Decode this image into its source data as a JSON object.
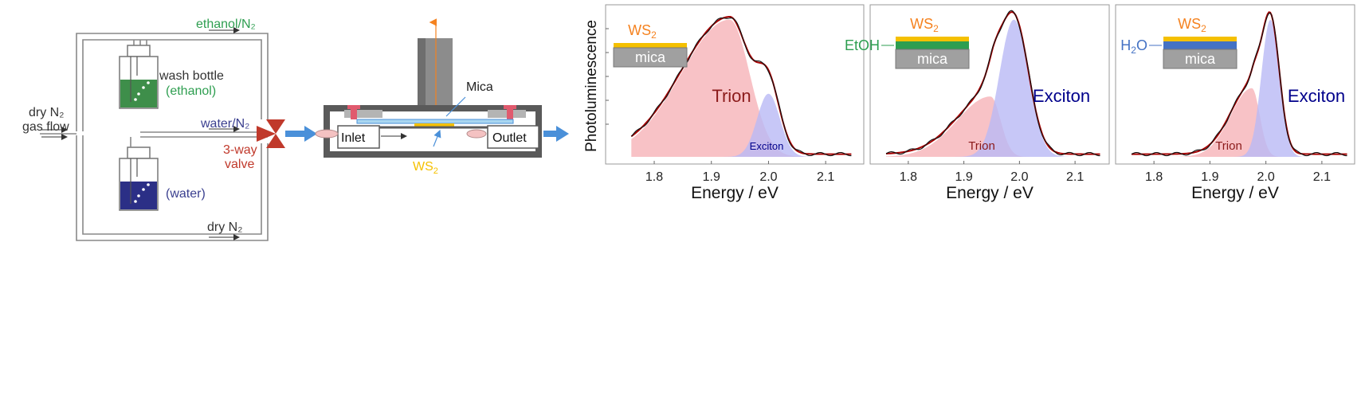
{
  "setup": {
    "ethanol_line": "ethanol/N₂",
    "dry_in_1": "dry N₂",
    "dry_in_2": "gas flow",
    "wash_1": "wash bottle",
    "wash_2": "(ethanol)",
    "water_line": "water/N₂",
    "valve_1": "3-way",
    "valve_2": "valve",
    "water_label": "(water)",
    "dry_out": "dry N₂"
  },
  "cell": {
    "mica": "Mica",
    "inlet": "Inlet",
    "outlet": "Outlet",
    "ws2_base": "WS",
    "ws2_sub": "2"
  },
  "colors": {
    "trion_fill": "#f6b3b8",
    "exciton_fill": "#b9b9f5",
    "fit_line": "#a40000",
    "data_line": "#111111",
    "ws2_color": "#f5821f",
    "ethanol_green": "#2e9e50",
    "water_blue": "#4472c4",
    "exciton_text": "#00008b",
    "trion_text": "#8b1a1a",
    "valve_red": "#c0392b"
  },
  "panels": [
    {
      "inset": {
        "top": "WS",
        "top_sub": "2",
        "bottom": "mica",
        "left_label": "",
        "left_sub": "",
        "left_after": ""
      },
      "big_label": "Trion",
      "small_label": "Exciton",
      "xlabel": "Energy / eV"
    },
    {
      "inset": {
        "top": "WS",
        "top_sub": "2",
        "bottom": "mica",
        "left_label": "EtOH",
        "left_sub": "",
        "left_after": ""
      },
      "big_label": "Exciton",
      "small_label": "Trion",
      "xlabel": "Energy / eV"
    },
    {
      "inset": {
        "top": "WS",
        "top_sub": "2",
        "bottom": "mica",
        "left_label": "H",
        "left_sub": "2",
        "left_after": "O"
      },
      "big_label": "Exciton",
      "small_label": "Trion",
      "xlabel": "Energy / eV"
    }
  ],
  "chart_data": [
    {
      "type": "area",
      "ylabel": "Photoluminescence",
      "xlabel": "Energy / eV",
      "xlim": [
        1.74,
        2.15
      ],
      "ylim": [
        0,
        1.05
      ],
      "xticks": [
        1.8,
        1.9,
        2.0,
        2.1
      ],
      "series": [
        {
          "name": "Trion",
          "center": 1.932,
          "width_left": 0.085,
          "width_right": 0.035,
          "amplitude": 1.0
        },
        {
          "name": "Exciton",
          "center": 2.0,
          "width_left": 0.02,
          "width_right": 0.02,
          "amplitude": 0.46
        }
      ]
    },
    {
      "type": "area",
      "xlabel": "Energy / eV",
      "xlim": [
        1.74,
        2.15
      ],
      "ylim": [
        0,
        1.05
      ],
      "xticks": [
        1.8,
        1.9,
        2.0,
        2.1
      ],
      "series": [
        {
          "name": "Trion",
          "center": 1.948,
          "width_left": 0.06,
          "width_right": 0.018,
          "amplitude": 0.44
        },
        {
          "name": "Exciton",
          "center": 1.99,
          "width_left": 0.026,
          "width_right": 0.026,
          "amplitude": 1.0
        }
      ]
    },
    {
      "type": "area",
      "xlabel": "Energy / eV",
      "xlim": [
        1.74,
        2.15
      ],
      "ylim": [
        0,
        1.05
      ],
      "xticks": [
        1.8,
        1.9,
        2.0,
        2.1
      ],
      "series": [
        {
          "name": "Trion",
          "center": 1.975,
          "width_left": 0.038,
          "width_right": 0.014,
          "amplitude": 0.5
        },
        {
          "name": "Exciton",
          "center": 2.008,
          "width_left": 0.016,
          "width_right": 0.016,
          "amplitude": 1.0
        }
      ]
    }
  ]
}
